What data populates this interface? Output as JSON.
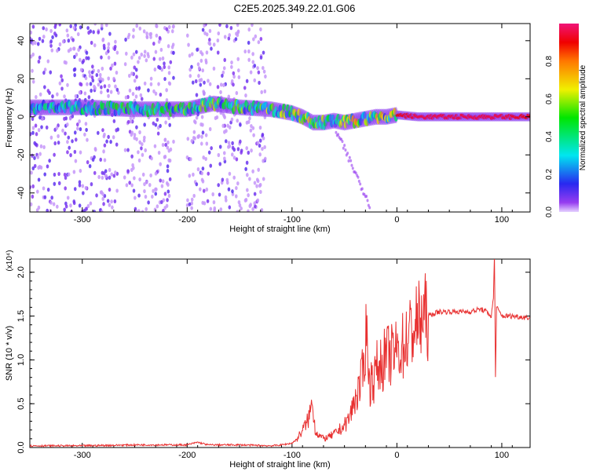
{
  "title": "C2E5.2025.349.22.01.G06",
  "chart_data": [
    {
      "type": "heatmap",
      "xlabel": "Height of straight line (km)",
      "ylabel": "Frequency (Hz)",
      "xlim": [
        -350,
        127
      ],
      "ylim": [
        -50,
        49
      ],
      "xticks": [
        -300,
        -200,
        -100,
        0,
        100
      ],
      "yticks": [
        -40,
        -20,
        0,
        20,
        40
      ],
      "colorbar": {
        "label": "Normalized spectral amplitude",
        "ticks": [
          "0.0",
          "0.2",
          "0.4",
          "0.6",
          "0.8"
        ],
        "range": [
          0,
          1
        ]
      },
      "ridge": {
        "x": [
          -350,
          -300,
          -250,
          -200,
          -175,
          -150,
          -120,
          -100,
          -90,
          -80,
          -70,
          -60,
          -50,
          -40,
          -30,
          -20,
          -10,
          0,
          20,
          60,
          100,
          127
        ],
        "freq": [
          5,
          5,
          4,
          4,
          7,
          5,
          4,
          2,
          0,
          -3,
          -3,
          -2,
          -3,
          -2,
          -1,
          0,
          0,
          1,
          0,
          0,
          0,
          0
        ],
        "peak_amp": [
          0.3,
          0.35,
          0.4,
          0.45,
          0.5,
          0.45,
          0.5,
          0.55,
          0.6,
          0.6,
          0.55,
          0.6,
          0.6,
          0.65,
          0.7,
          0.75,
          0.8,
          0.9,
          0.95,
          0.95,
          0.95,
          0.9
        ]
      },
      "noise_bands": [
        [
          -350,
          -265
        ],
        [
          -260,
          -212
        ],
        [
          -200,
          -148
        ],
        [
          -145,
          -125
        ]
      ]
    },
    {
      "type": "line",
      "xlabel": "Height of straight line (km)",
      "ylabel": "SNR (10 * v/v)",
      "scale_label": "(x10⁴)",
      "xlim": [
        -350,
        127
      ],
      "ylim": [
        0,
        2.15
      ],
      "xticks": [
        -300,
        -200,
        -100,
        0,
        100
      ],
      "yticks": [
        "0.0",
        "0.5",
        "1.0",
        "1.5",
        "2.0"
      ],
      "series": [
        {
          "name": "SNR",
          "color": "#e83030",
          "x": [
            -350,
            -300,
            -250,
            -200,
            -190,
            -180,
            -150,
            -120,
            -110,
            -100,
            -95,
            -90,
            -85,
            -82,
            -80,
            -78,
            -75,
            -70,
            -65,
            -60,
            -55,
            -50,
            -45,
            -40,
            -35,
            -32,
            -30,
            -28,
            -26,
            -24,
            -22,
            -20,
            -15,
            -10,
            -5,
            0,
            5,
            10,
            15,
            20,
            25,
            30,
            40,
            50,
            60,
            70,
            80,
            85,
            90,
            92,
            93,
            94,
            95,
            100,
            110,
            127
          ],
          "y": [
            0.02,
            0.02,
            0.03,
            0.03,
            0.06,
            0.03,
            0.03,
            0.02,
            0.03,
            0.05,
            0.1,
            0.2,
            0.3,
            0.45,
            0.5,
            0.2,
            0.15,
            0.1,
            0.12,
            0.15,
            0.2,
            0.25,
            0.35,
            0.55,
            0.7,
            0.9,
            1.25,
            1.3,
            0.65,
            0.85,
            0.75,
            0.9,
            0.95,
            1.05,
            1.05,
            1.1,
            1.15,
            1.25,
            1.35,
            1.42,
            1.48,
            1.5,
            1.55,
            1.55,
            1.55,
            1.55,
            1.58,
            1.55,
            1.5,
            1.7,
            2.2,
            0.8,
            1.6,
            1.5,
            1.5,
            1.48
          ]
        }
      ]
    }
  ]
}
